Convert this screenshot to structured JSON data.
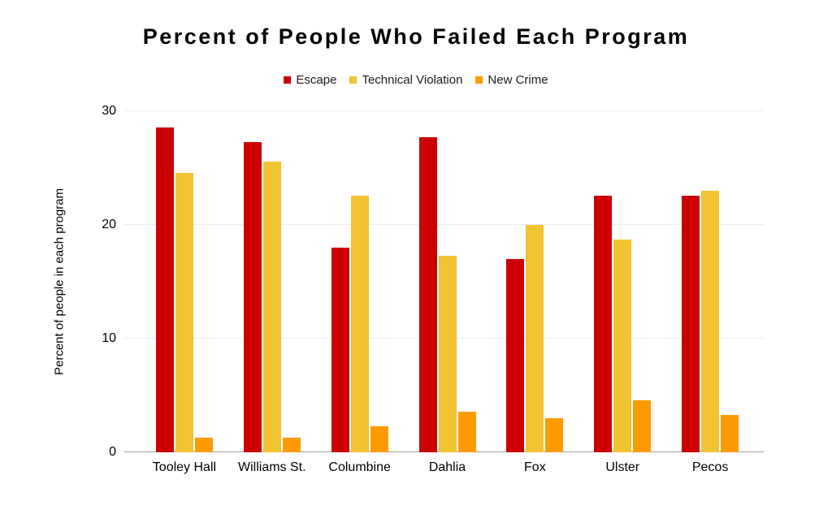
{
  "title": "Percent of People Who Failed Each Program",
  "legend": {
    "items": [
      {
        "label": "Escape",
        "color": "#CC0000"
      },
      {
        "label": "Technical Violation",
        "color": "#F1C232"
      },
      {
        "label": "New Crime",
        "color": "#FF9900"
      }
    ]
  },
  "chart_data": {
    "type": "bar",
    "title": "Percent of People Who Failed Each Program",
    "categories": [
      "Tooley Hall",
      "Williams St.",
      "Columbine",
      "Dahlia",
      "Fox",
      "Ulster",
      "Pecos"
    ],
    "series": [
      {
        "name": "Escape",
        "color": "#CC0000",
        "values": [
          28.6,
          27.3,
          18,
          27.7,
          17,
          22.6,
          22.6
        ]
      },
      {
        "name": "Technical Violation",
        "color": "#F1C232",
        "values": [
          24.6,
          25.6,
          22.6,
          17.3,
          20,
          18.7,
          23
        ]
      },
      {
        "name": "New Crime",
        "color": "#FF9900",
        "values": [
          1.3,
          1.3,
          2.3,
          3.6,
          3,
          4.6,
          3.3
        ]
      }
    ],
    "xlabel": "",
    "ylabel": "Percent of people in each program",
    "ylim": [
      0,
      30
    ],
    "yticks": [
      0,
      10,
      20,
      30
    ],
    "grid": true,
    "legend_position": "top",
    "colors": {
      "gridline": "#ececec",
      "axis_line": "#9e9e9e",
      "text": "#000000",
      "background": "#ffffff"
    }
  }
}
